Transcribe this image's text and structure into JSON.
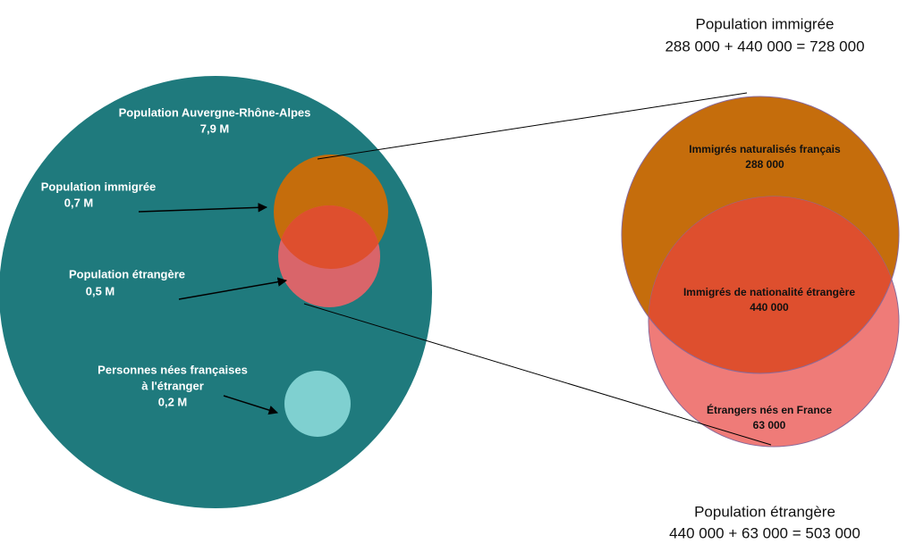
{
  "left": {
    "region": {
      "name": "Population Auvergne-Rhône-Alpes",
      "value": "7,9 M"
    },
    "immigrants": {
      "name": "Population immigrée",
      "value": "0,7 M"
    },
    "foreigners": {
      "name": "Population étrangère",
      "value": "0,5 M"
    },
    "born_french_abroad": {
      "name_lines": [
        "Personnes nées françaises",
        "à l'étranger"
      ],
      "value": "0,2 M"
    }
  },
  "right": {
    "top_caption": {
      "title": "Population immigrée",
      "formula": "288 000 + 440 000 = 728 000"
    },
    "naturalized": {
      "name": "Immigrés naturalisés français",
      "value": "288 000"
    },
    "foreign_nationality": {
      "name": "Immigrés de nationalité étrangère",
      "value": "440 000"
    },
    "born_in_france": {
      "name": "Étrangers nés en France",
      "value": "63 000"
    },
    "bottom_caption": {
      "title": "Population étrangère",
      "formula": "440 000 + 63 000 = 503 000"
    }
  }
}
